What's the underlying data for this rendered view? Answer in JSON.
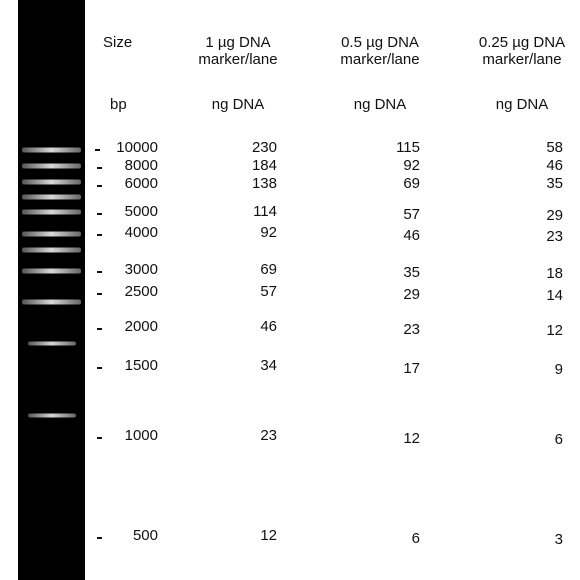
{
  "table": {
    "columns": [
      "Size",
      "1 µg DNA marker/lane",
      "0.5 µg DNA marker/lane",
      "0.25 µg DNA marker/lane"
    ],
    "units": [
      "bp",
      "ng DNA",
      "ng DNA",
      "ng DNA"
    ],
    "rows": [
      [
        10000,
        230,
        115,
        58
      ],
      [
        8000,
        184,
        92,
        46
      ],
      [
        6000,
        138,
        69,
        35
      ],
      [
        5000,
        114,
        57,
        29
      ],
      [
        4000,
        92,
        46,
        23
      ],
      [
        3000,
        69,
        35,
        18
      ],
      [
        2500,
        57,
        29,
        14
      ],
      [
        2000,
        46,
        23,
        12
      ],
      [
        1500,
        34,
        17,
        9
      ],
      [
        1000,
        23,
        12,
        6
      ],
      [
        500,
        12,
        6,
        3
      ]
    ]
  }
}
